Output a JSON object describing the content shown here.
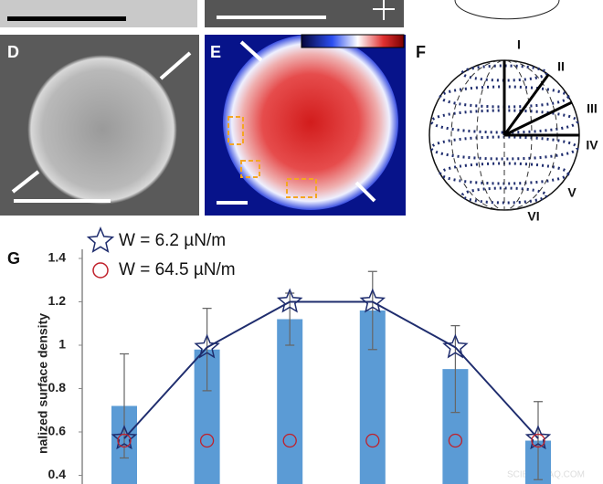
{
  "panels": {
    "d": {
      "label": "D"
    },
    "e": {
      "label": "E"
    },
    "f": {
      "label": "F",
      "regions": [
        "I",
        "II",
        "III",
        "IV",
        "V",
        "VI"
      ]
    },
    "g": {
      "label": "G"
    }
  },
  "watermark": "SCIENCEAQ.COM",
  "chart_data": {
    "type": "bar",
    "y_label": "nalized surface density",
    "categories": [
      null,
      null,
      null,
      null,
      null,
      null
    ],
    "series": [
      {
        "color": "#5b9bd5",
        "values": [
          0.72,
          0.98,
          1.12,
          1.16,
          0.89,
          0.56
        ],
        "errors": [
          0.24,
          0.19,
          0.12,
          0.18,
          0.2,
          0.18
        ]
      },
      {
        "name": "W = 6.2 µN/m",
        "type": "line",
        "marker": "star",
        "color": "#1f2d6e",
        "values": [
          0.57,
          0.99,
          1.2,
          1.2,
          0.99,
          0.57
        ]
      },
      {
        "name": "W = 64.5 µN/m",
        "type": "scatter",
        "marker": "circle",
        "color": "#c0202a",
        "values": [
          0.56,
          0.56,
          0.56,
          0.56,
          0.56,
          0.56
        ]
      }
    ],
    "ylim": [
      0.36,
      1.4
    ],
    "yticks": [
      0.4,
      0.6,
      0.8,
      {
        "value": 1,
        "label": "1"
      },
      1.2,
      1.4
    ],
    "grid": false
  }
}
